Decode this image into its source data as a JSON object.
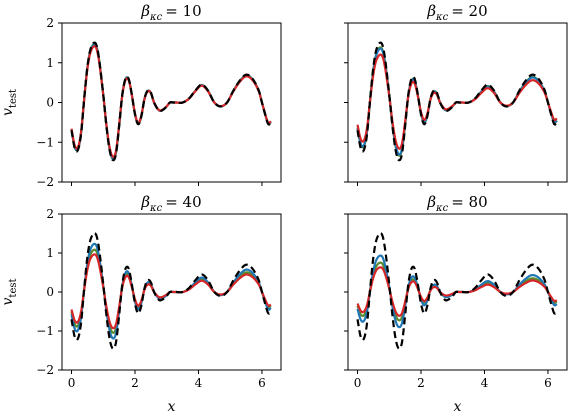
{
  "chart_data": {
    "type": "line",
    "layout": "2x2 grid, shared x and y axes",
    "panels": [
      {
        "title": "β_κc = 10",
        "title_base": "β",
        "title_sub": "κc",
        "title_value": "= 10",
        "series": [
          {
            "role": "reference",
            "style": "black dashed",
            "color": "#000000"
          },
          {
            "role": "green",
            "color": "#5a8a2a",
            "amp": 0.98
          },
          {
            "role": "blue",
            "color": "#1f77b4",
            "amp": 0.97
          },
          {
            "role": "red",
            "color": "#d62728",
            "amp": 0.94
          }
        ]
      },
      {
        "title": "β_κc = 20",
        "title_base": "β",
        "title_sub": "κc",
        "title_value": "= 20",
        "series": [
          {
            "role": "reference",
            "style": "black dashed",
            "color": "#000000"
          },
          {
            "role": "green",
            "color": "#5a8a2a",
            "amp": 0.92
          },
          {
            "role": "blue",
            "color": "#1f77b4",
            "amp": 0.9
          },
          {
            "role": "red",
            "color": "#d62728",
            "amp": 0.8
          }
        ]
      },
      {
        "title": "β_κc = 40",
        "title_base": "β",
        "title_sub": "κc",
        "title_value": "= 40",
        "series": [
          {
            "role": "reference",
            "style": "black dashed",
            "color": "#000000"
          },
          {
            "role": "green",
            "color": "#5a8a2a",
            "amp": 0.72
          },
          {
            "role": "blue",
            "color": "#1f77b4",
            "amp": 0.82
          },
          {
            "role": "red",
            "color": "#d62728",
            "amp": 0.64
          }
        ]
      },
      {
        "title": "β_κc = 80",
        "title_base": "β",
        "title_sub": "κc",
        "title_value": "= 80",
        "series": [
          {
            "role": "reference",
            "style": "black dashed",
            "color": "#000000"
          },
          {
            "role": "green",
            "color": "#5a8a2a",
            "amp": 0.5
          },
          {
            "role": "blue",
            "color": "#1f77b4",
            "amp": 0.62
          },
          {
            "role": "red",
            "color": "#d62728",
            "amp": 0.42
          }
        ]
      }
    ],
    "reference_curve": {
      "x": [
        0.0,
        0.1,
        0.2,
        0.3,
        0.4,
        0.5,
        0.6,
        0.75,
        0.85,
        1.0,
        1.1,
        1.2,
        1.3,
        1.4,
        1.5,
        1.6,
        1.7,
        1.8,
        1.9,
        2.0,
        2.1,
        2.2,
        2.3,
        2.4,
        2.5,
        2.6,
        2.75,
        2.85,
        3.0,
        3.1,
        3.2,
        3.3,
        3.5,
        3.7,
        3.9,
        4.1,
        4.3,
        4.5,
        4.7,
        4.9,
        5.1,
        5.3,
        5.5,
        5.7,
        5.9,
        6.0,
        6.1,
        6.2,
        6.28
      ],
      "y": [
        -0.7,
        -1.15,
        -1.2,
        -0.8,
        0.1,
        0.9,
        1.35,
        1.5,
        1.2,
        0.2,
        -0.6,
        -1.2,
        -1.45,
        -1.3,
        -0.6,
        0.2,
        0.6,
        0.6,
        0.2,
        -0.3,
        -0.55,
        -0.35,
        0.1,
        0.3,
        0.25,
        0.0,
        -0.2,
        -0.2,
        -0.1,
        0.0,
        0.0,
        0.0,
        0.0,
        0.1,
        0.3,
        0.45,
        0.3,
        0.0,
        -0.1,
        0.0,
        0.3,
        0.55,
        0.7,
        0.6,
        0.3,
        0.0,
        -0.3,
        -0.55,
        -0.5
      ]
    },
    "xlim": [
      -0.3,
      6.6
    ],
    "ylim": [
      -2,
      2
    ],
    "xticks": [
      "0",
      "2",
      "4",
      "6"
    ],
    "yticks": [
      "−2",
      "−1",
      "0",
      "1",
      "2"
    ],
    "xlabel": "x",
    "ylabel_base": "v",
    "ylabel_sub": "test",
    "grid": false,
    "legend": "none"
  }
}
